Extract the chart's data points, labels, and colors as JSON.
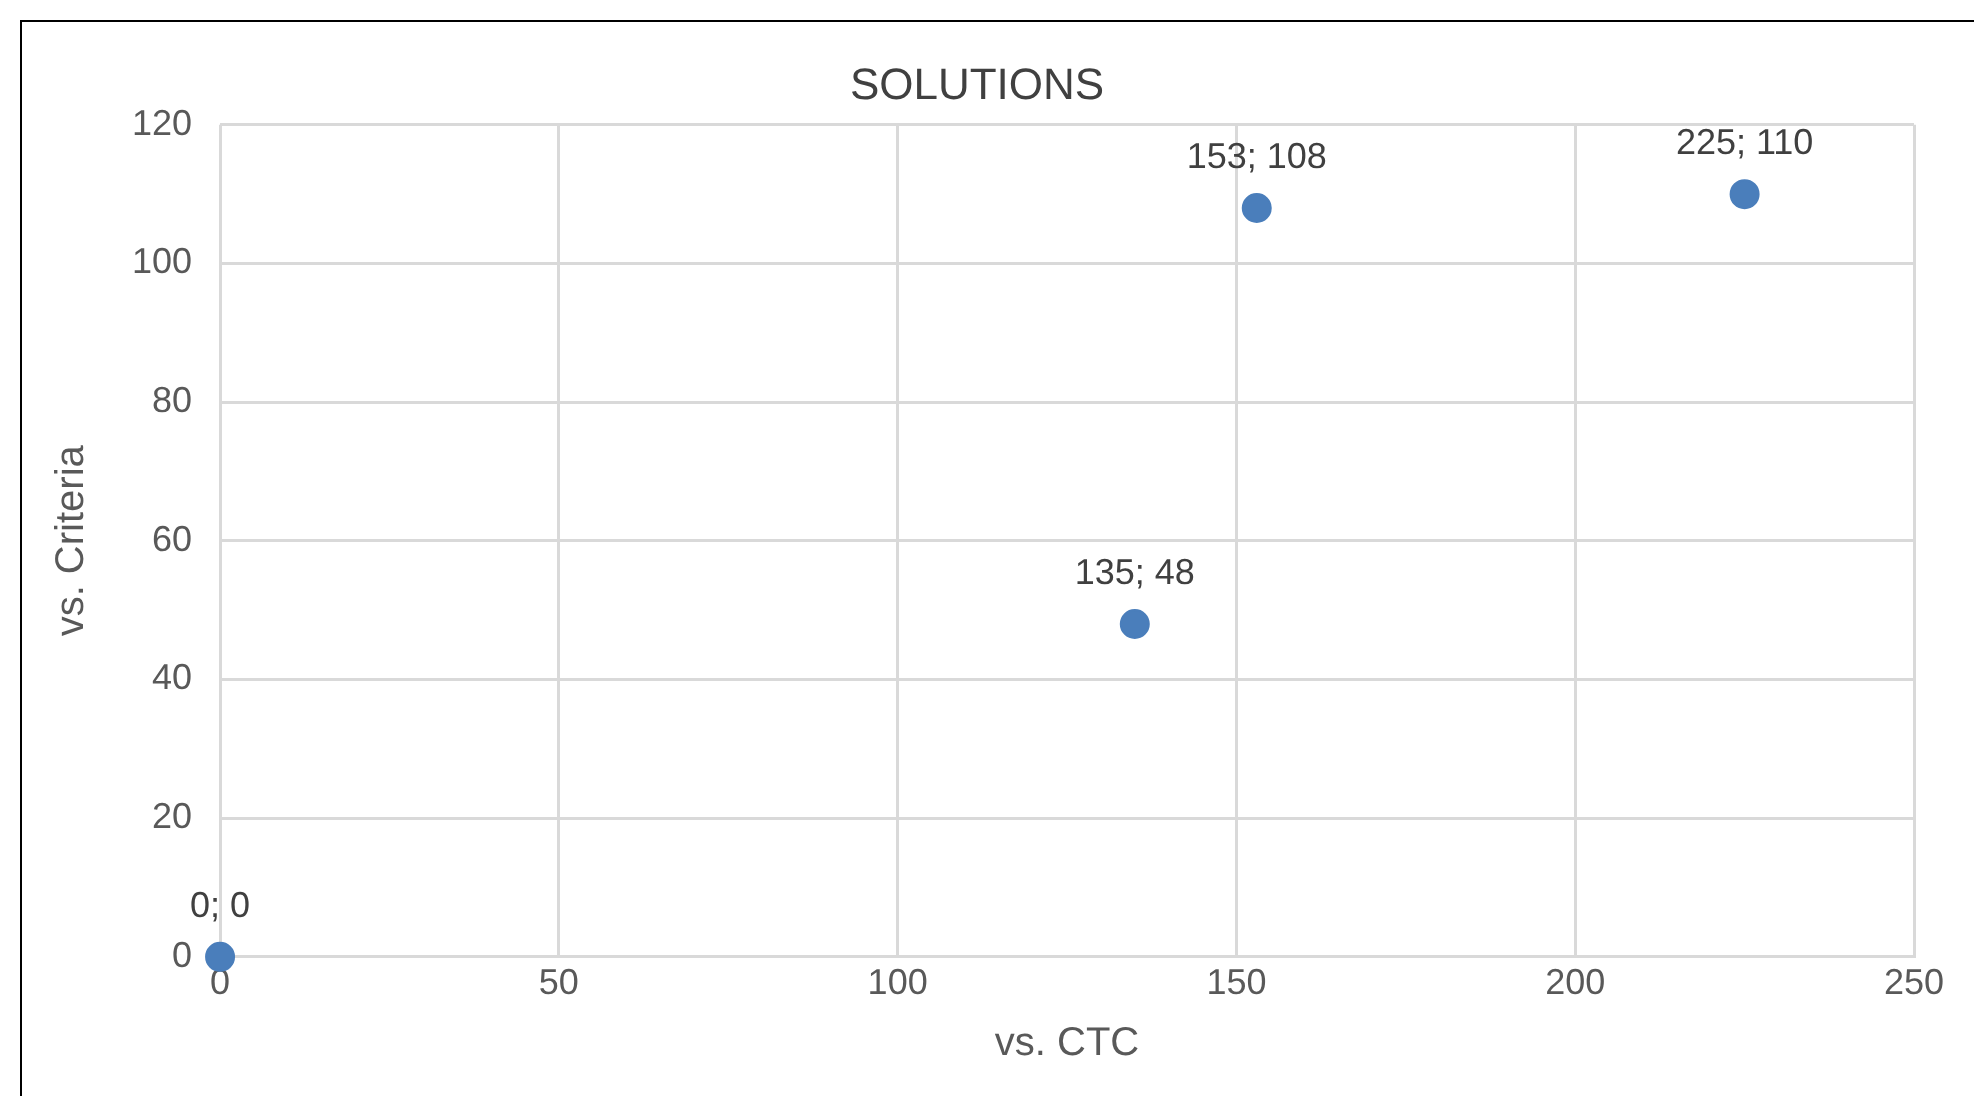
{
  "chart_data": {
    "type": "scatter",
    "title": "SOLUTIONS",
    "xlabel": "vs. CTC",
    "ylabel": "vs. Criteria",
    "x": [
      0,
      135,
      153,
      225
    ],
    "values": [
      0,
      48,
      108,
      110
    ],
    "value_labels": [
      "0; 0",
      "135; 48",
      "153; 108",
      "225; 110"
    ],
    "color": "#4a7ebb",
    "marker": "circle",
    "grid": true,
    "legend": false,
    "xlim": [
      0,
      250
    ],
    "xticks": [
      0,
      50,
      100,
      150,
      200,
      250
    ],
    "ylim": [
      0,
      120
    ],
    "yticks": [
      0,
      20,
      40,
      60,
      80,
      100,
      120
    ]
  }
}
